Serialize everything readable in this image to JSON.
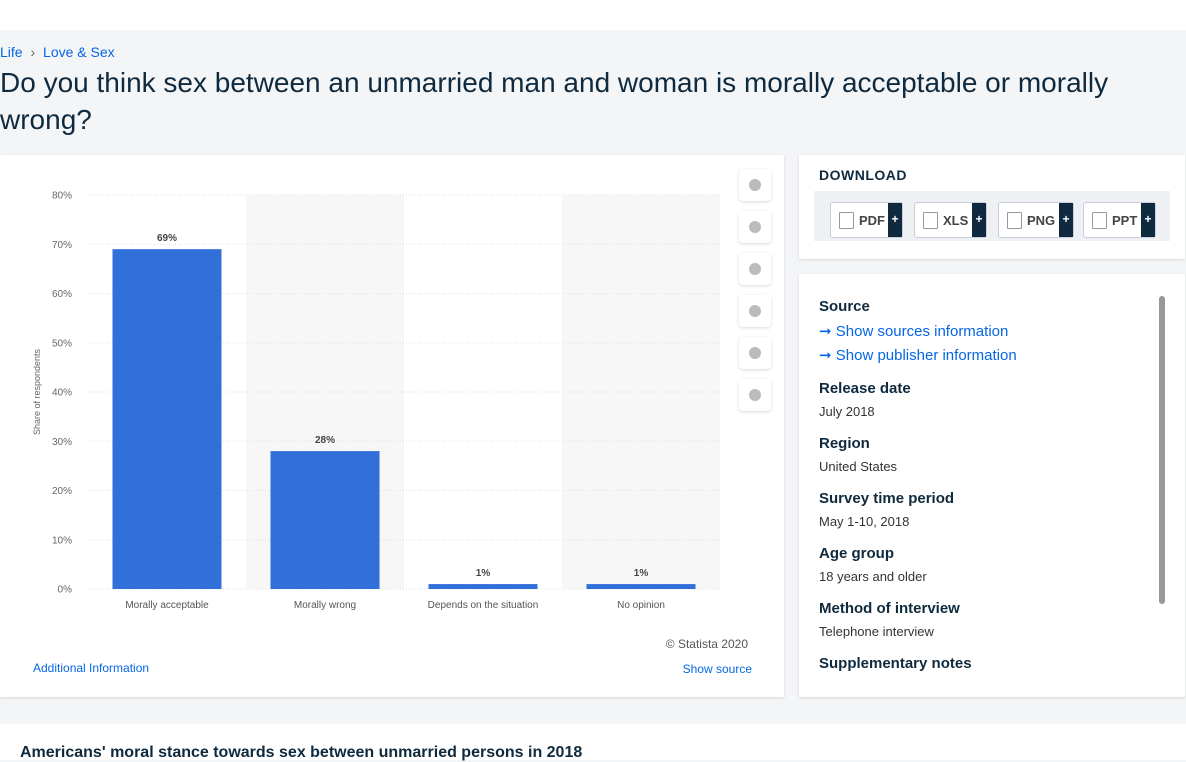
{
  "breadcrumb": [
    "Life",
    "Love & Sex"
  ],
  "title": "Do you think sex between an unmarried man and woman is morally acceptable or morally wrong?",
  "chart_data": {
    "type": "bar",
    "categories": [
      "Morally acceptable",
      "Morally wrong",
      "Depends on the situation",
      "No opinion"
    ],
    "values": [
      69,
      28,
      1,
      1
    ],
    "value_labels": [
      "69%",
      "28%",
      "1%",
      "1%"
    ],
    "color": "#3170d8",
    "ylabel": "Share of respondents",
    "ylim": [
      0,
      80
    ],
    "yticks": [
      {
        "value": 0,
        "label": "0%"
      },
      {
        "value": 10,
        "label": "10%"
      },
      {
        "value": 20,
        "label": "20%"
      },
      {
        "value": 30,
        "label": "30%"
      },
      {
        "value": 40,
        "label": "40%"
      },
      {
        "value": 50,
        "label": "50%"
      },
      {
        "value": 60,
        "label": "60%"
      },
      {
        "value": 70,
        "label": "70%"
      },
      {
        "value": 80,
        "label": "80%"
      }
    ],
    "grid": true
  },
  "credit": "© Statista 2020",
  "additional": "Additional Information",
  "show_source": "Show source",
  "download": {
    "heading": "DOWNLOAD",
    "formats": [
      "PDF",
      "XLS",
      "PNG",
      "PPT"
    ],
    "plus": "+"
  },
  "source": {
    "heading": "Source",
    "links": [
      "Show sources information",
      "Show publisher information"
    ]
  },
  "details": [
    {
      "label": "Release date",
      "value": "July 2018"
    },
    {
      "label": "Region",
      "value": "United States"
    },
    {
      "label": "Survey time period",
      "value": "May 1-10, 2018"
    },
    {
      "label": "Age group",
      "value": "18 years and older"
    },
    {
      "label": "Method of interview",
      "value": "Telephone interview"
    },
    {
      "label": "Supplementary notes"
    }
  ],
  "description": "Americans' moral stance towards sex between unmarried persons in 2018"
}
